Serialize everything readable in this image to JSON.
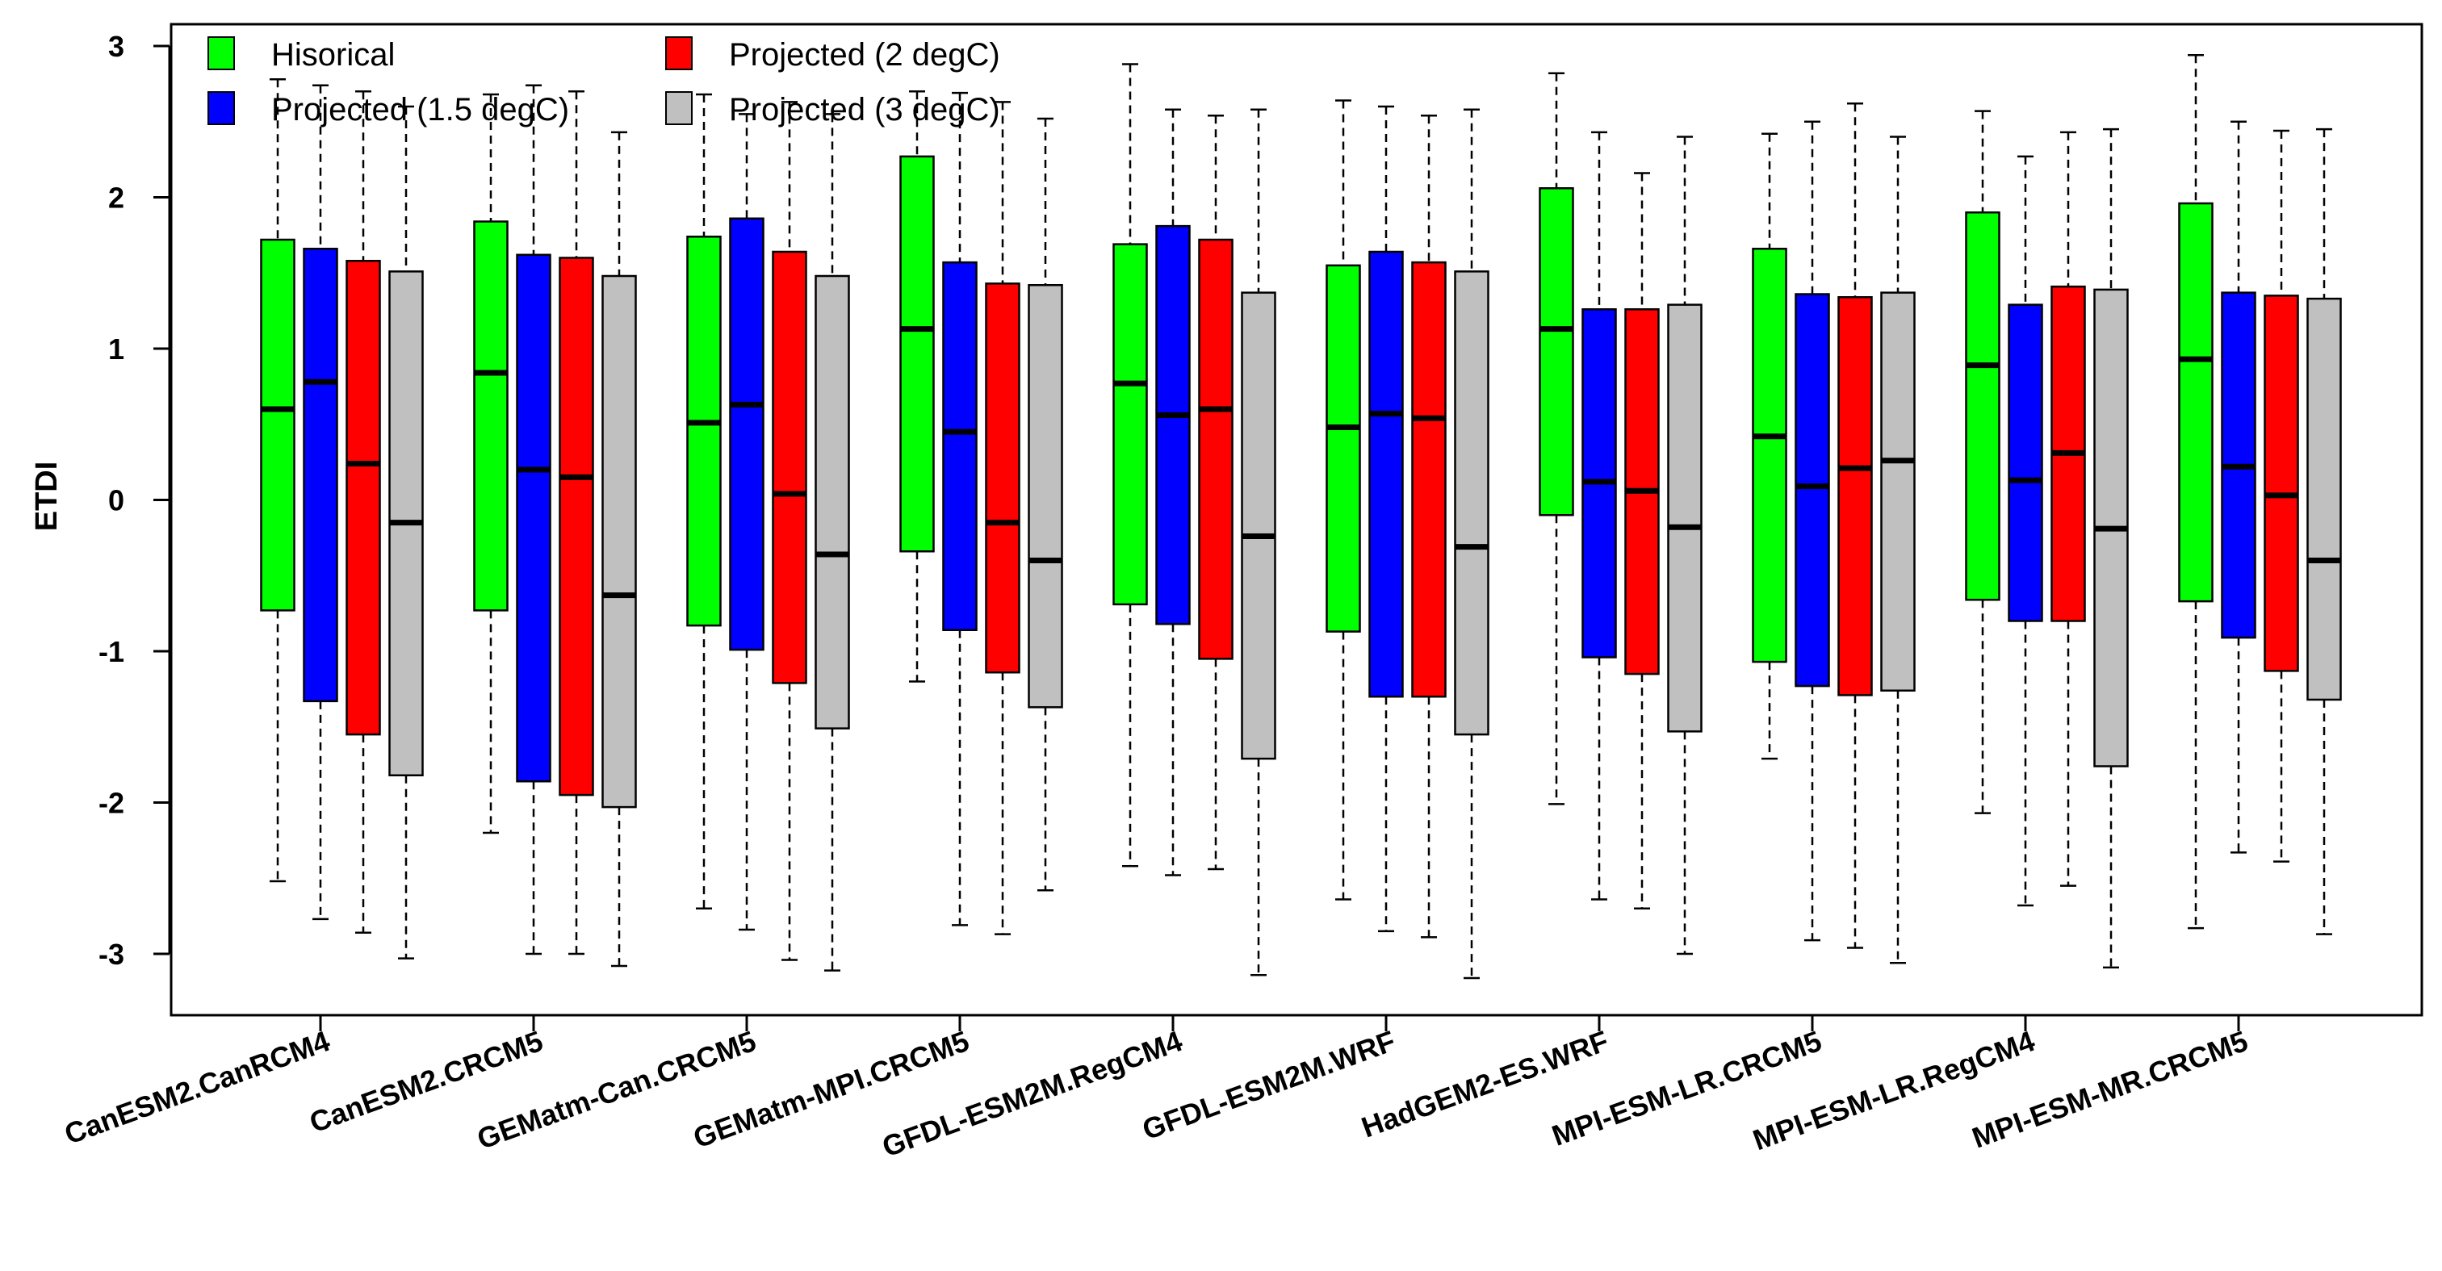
{
  "chart_data": {
    "type": "boxplot",
    "title": "",
    "xlabel": "",
    "ylabel": "ETDI",
    "ylim": [
      -3.4,
      3.1
    ],
    "yticks": [
      3,
      2,
      1,
      0,
      -1,
      -2,
      -3
    ],
    "ytick_labels": [
      "3",
      "2",
      "1",
      "0",
      "-1",
      "-2",
      "-3"
    ],
    "legend_position": "top-left",
    "categories": [
      "CanESM2.CanRCM4",
      "CanESM2.CRCM5",
      "GEMatm-Can.CRCM5",
      "GEMatm-MPI.CRCM5",
      "GFDL-ESM2M.RegCM4",
      "GFDL-ESM2M.WRF",
      "HadGEM2-ES.WRF",
      "MPI-ESM-LR.CRCM5",
      "MPI-ESM-LR.RegCM4",
      "MPI-ESM-MR.CRCM5"
    ],
    "series": [
      {
        "name": "Hisorical",
        "color": "#00ff00",
        "boxes": [
          {
            "min": -2.52,
            "q1": -0.73,
            "median": 0.6,
            "q3": 1.72,
            "max": 2.78
          },
          {
            "min": -2.2,
            "q1": -0.73,
            "median": 0.84,
            "q3": 1.84,
            "max": 2.68
          },
          {
            "min": -2.7,
            "q1": -0.83,
            "median": 0.51,
            "q3": 1.74,
            "max": 2.68
          },
          {
            "min": -1.2,
            "q1": -0.34,
            "median": 1.13,
            "q3": 2.27,
            "max": 2.7
          },
          {
            "min": -2.42,
            "q1": -0.69,
            "median": 0.77,
            "q3": 1.69,
            "max": 2.88
          },
          {
            "min": -2.64,
            "q1": -0.87,
            "median": 0.48,
            "q3": 1.55,
            "max": 2.64
          },
          {
            "min": -2.01,
            "q1": -0.1,
            "median": 1.13,
            "q3": 2.06,
            "max": 2.82
          },
          {
            "min": -1.71,
            "q1": -1.07,
            "median": 0.42,
            "q3": 1.66,
            "max": 2.42
          },
          {
            "min": -2.07,
            "q1": -0.66,
            "median": 0.89,
            "q3": 1.9,
            "max": 2.57
          },
          {
            "min": -2.83,
            "q1": -0.67,
            "median": 0.93,
            "q3": 1.96,
            "max": 2.94
          }
        ]
      },
      {
        "name": "Projected (1.5 degC)",
        "color": "#0000ff",
        "boxes": [
          {
            "min": -2.77,
            "q1": -1.33,
            "median": 0.78,
            "q3": 1.66,
            "max": 2.74
          },
          {
            "min": -3.0,
            "q1": -1.86,
            "median": 0.2,
            "q3": 1.62,
            "max": 2.74
          },
          {
            "min": -2.84,
            "q1": -0.99,
            "median": 0.63,
            "q3": 1.86,
            "max": 2.55
          },
          {
            "min": -2.81,
            "q1": -0.86,
            "median": 0.45,
            "q3": 1.57,
            "max": 2.69
          },
          {
            "min": -2.48,
            "q1": -0.82,
            "median": 0.56,
            "q3": 1.81,
            "max": 2.58
          },
          {
            "min": -2.85,
            "q1": -1.3,
            "median": 0.57,
            "q3": 1.64,
            "max": 2.6
          },
          {
            "min": -2.64,
            "q1": -1.04,
            "median": 0.12,
            "q3": 1.26,
            "max": 2.43
          },
          {
            "min": -2.91,
            "q1": -1.23,
            "median": 0.09,
            "q3": 1.36,
            "max": 2.5
          },
          {
            "min": -2.68,
            "q1": -0.8,
            "median": 0.13,
            "q3": 1.29,
            "max": 2.27
          },
          {
            "min": -2.33,
            "q1": -0.91,
            "median": 0.22,
            "q3": 1.37,
            "max": 2.5
          }
        ]
      },
      {
        "name": "Projected (2 degC)",
        "color": "#ff0000",
        "boxes": [
          {
            "min": -2.86,
            "q1": -1.55,
            "median": 0.24,
            "q3": 1.58,
            "max": 2.7
          },
          {
            "min": -3.0,
            "q1": -1.95,
            "median": 0.15,
            "q3": 1.6,
            "max": 2.7
          },
          {
            "min": -3.04,
            "q1": -1.21,
            "median": 0.04,
            "q3": 1.64,
            "max": 2.63
          },
          {
            "min": -2.87,
            "q1": -1.14,
            "median": -0.15,
            "q3": 1.43,
            "max": 2.63
          },
          {
            "min": -2.44,
            "q1": -1.05,
            "median": 0.6,
            "q3": 1.72,
            "max": 2.54
          },
          {
            "min": -2.89,
            "q1": -1.3,
            "median": 0.54,
            "q3": 1.57,
            "max": 2.54
          },
          {
            "min": -2.7,
            "q1": -1.15,
            "median": 0.06,
            "q3": 1.26,
            "max": 2.16
          },
          {
            "min": -2.96,
            "q1": -1.29,
            "median": 0.21,
            "q3": 1.34,
            "max": 2.62
          },
          {
            "min": -2.55,
            "q1": -0.8,
            "median": 0.31,
            "q3": 1.41,
            "max": 2.43
          },
          {
            "min": -2.39,
            "q1": -1.13,
            "median": 0.03,
            "q3": 1.35,
            "max": 2.44
          }
        ]
      },
      {
        "name": "Projected (3 degC)",
        "color": "#c0c0c0",
        "boxes": [
          {
            "min": -3.03,
            "q1": -1.82,
            "median": -0.15,
            "q3": 1.51,
            "max": 2.6
          },
          {
            "min": -3.08,
            "q1": -2.03,
            "median": -0.63,
            "q3": 1.48,
            "max": 2.43
          },
          {
            "min": -3.11,
            "q1": -1.51,
            "median": -0.36,
            "q3": 1.48,
            "max": 2.55
          },
          {
            "min": -2.58,
            "q1": -1.37,
            "median": -0.4,
            "q3": 1.42,
            "max": 2.52
          },
          {
            "min": -3.14,
            "q1": -1.71,
            "median": -0.24,
            "q3": 1.37,
            "max": 2.58
          },
          {
            "min": -3.16,
            "q1": -1.55,
            "median": -0.31,
            "q3": 1.51,
            "max": 2.58
          },
          {
            "min": -3.0,
            "q1": -1.53,
            "median": -0.18,
            "q3": 1.29,
            "max": 2.4
          },
          {
            "min": -3.06,
            "q1": -1.26,
            "median": 0.26,
            "q3": 1.37,
            "max": 2.4
          },
          {
            "min": -3.09,
            "q1": -1.76,
            "median": -0.19,
            "q3": 1.39,
            "max": 2.45
          },
          {
            "min": -2.87,
            "q1": -1.32,
            "median": -0.4,
            "q3": 1.33,
            "max": 2.45
          }
        ]
      }
    ]
  }
}
